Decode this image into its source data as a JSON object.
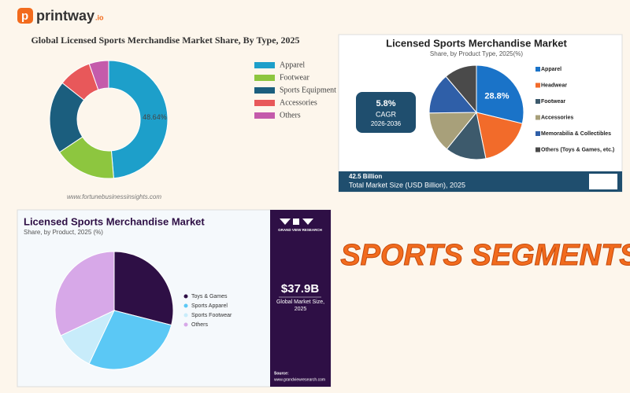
{
  "header": {
    "brand": "printway",
    "brand_suffix": ".io"
  },
  "banner": "SPORTS SEGMENTS",
  "chart_data": [
    {
      "type": "donut",
      "title": "Global Licensed Sports Merchandise Market Share, By Type, 2025",
      "categories": [
        "Apparel",
        "Footwear",
        "Sports Equipment",
        "Accessories",
        "Others"
      ],
      "values": [
        48.64,
        17,
        20,
        9,
        5.36
      ],
      "value_labels": [
        "48.64%",
        null,
        null,
        null,
        null
      ],
      "colors": [
        "#1d9fca",
        "#8dc63f",
        "#1b5e7e",
        "#e8585a",
        "#c45bab"
      ],
      "source": "www.fortunebusinessinsights.com"
    },
    {
      "type": "pie",
      "title": "Licensed Sports Merchandise Market",
      "subtitle": "Share, by Product Type, 2025(%)",
      "categories": [
        "Apparel",
        "Headwear",
        "Footwear",
        "Accessories",
        "Memorabilia & Collectibles",
        "Others (Toys & Games, etc.)"
      ],
      "values": [
        28.8,
        18,
        14,
        14,
        14,
        11.2
      ],
      "value_labels": [
        "28.8%",
        null,
        null,
        null,
        null,
        null
      ],
      "colors": [
        "#1a73c8",
        "#f26b2a",
        "#3d5a6c",
        "#a8a07a",
        "#2f5fa8",
        "#4a4a4a"
      ],
      "cagr": "5.8%",
      "cagr_label": "CAGR",
      "cagr_period": "2026-2036",
      "market_size": "42.5 Billion",
      "market_size_label": "Total Market Size (USD Billion), 2025"
    },
    {
      "type": "pie",
      "title": "Licensed Sports Merchandise Market",
      "subtitle": "Share, by Product, 2025 (%)",
      "categories": [
        "Toys & Games",
        "Sports Apparel",
        "Sports Footwear",
        "Others"
      ],
      "values": [
        29,
        28,
        11,
        32
      ],
      "colors": [
        "#2e0f45",
        "#5bc8f5",
        "#c8ecfa",
        "#d7a8e8"
      ],
      "brand": "GRAND VIEW RESEARCH",
      "market_size": "$37.9B",
      "market_size_label": "Global Market Size, 2025",
      "source_label": "Source:",
      "source": "www.grandviewresearch.com"
    }
  ]
}
